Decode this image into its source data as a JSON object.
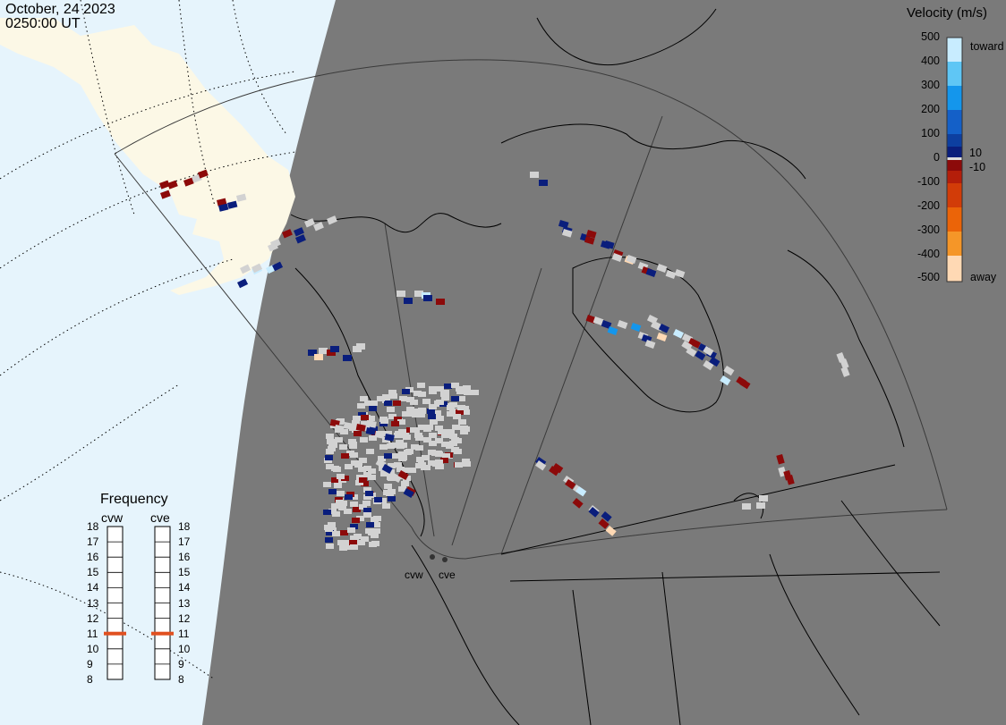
{
  "header": {
    "date": "October, 24 2023",
    "time": "0250:00 UT"
  },
  "colorbar": {
    "title": "Velocity (m/s)",
    "ticks": [
      "500",
      "400",
      "300",
      "200",
      "100",
      "10",
      "0",
      "-10",
      "-100",
      "-200",
      "-300",
      "-400",
      "-500"
    ],
    "toward_label": "toward",
    "away_label": "away",
    "colors": [
      "#c8ecff",
      "#5fc6f5",
      "#1496ec",
      "#1460c8",
      "#0d3fa0",
      "#0a1e7c",
      "#8c0a0a",
      "#b41e0a",
      "#d23c08",
      "#eb6408",
      "#f59628",
      "#ffd9b4"
    ]
  },
  "frequency": {
    "title": "Frequency",
    "radars": [
      {
        "name": "cvw",
        "current": 11
      },
      {
        "name": "cve",
        "current": 11
      }
    ],
    "scale": [
      "18",
      "17",
      "16",
      "15",
      "14",
      "13",
      "12",
      "11",
      "10",
      "9",
      "8"
    ],
    "marker_color": "#e05020"
  },
  "map": {
    "ocean_color": "#e6f4fc",
    "land_color": "#fcf8e6",
    "night_color": "#7a7a7a",
    "low_velocity_color": "#d2d2d2",
    "sites": [
      "cvw",
      "cve"
    ]
  }
}
